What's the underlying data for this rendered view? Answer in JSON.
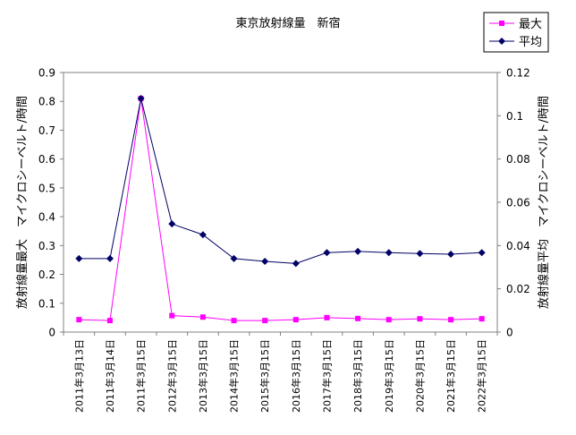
{
  "chart_data": {
    "type": "line",
    "title": "東京放射線量　新宿",
    "ylabel": "放射線量最大　マイクロシーベルト/時間",
    "y2label": "放射線量平均　マイクロシーベルト/時間",
    "categories": [
      "2011年3月13日",
      "2011年3月14日",
      "2011年3月15日",
      "2012年3月15日",
      "2013年3月15日",
      "2014年3月15日",
      "2015年3月15日",
      "2016年3月15日",
      "2017年3月15日",
      "2018年3月15日",
      "2019年3月15日",
      "2020年3月15日",
      "2021年3月15日",
      "2022年3月15日"
    ],
    "yticks": [
      "0",
      "0.1",
      "0.2",
      "0.3",
      "0.4",
      "0.5",
      "0.6",
      "0.7",
      "0.8",
      "0.9"
    ],
    "y2ticks": [
      "0",
      "0.02",
      "0.04",
      "0.06",
      "0.08",
      "0.1",
      "0.12"
    ],
    "ylim": [
      0,
      0.9
    ],
    "y2lim": [
      0,
      0.12
    ],
    "legend_position": "top-right",
    "grid": false,
    "series": [
      {
        "name": "最大",
        "axis": "left",
        "color": "#ff00ff",
        "marker": "square",
        "values": [
          0.043,
          0.04,
          0.81,
          0.057,
          0.052,
          0.04,
          0.04,
          0.043,
          0.05,
          0.047,
          0.043,
          0.046,
          0.043,
          0.046
        ]
      },
      {
        "name": "平均",
        "axis": "right",
        "color": "#000066",
        "marker": "diamond",
        "values": [
          0.034,
          0.034,
          0.108,
          0.05,
          0.045,
          0.034,
          0.0327,
          0.0317,
          0.0367,
          0.0373,
          0.0367,
          0.0363,
          0.036,
          0.0367
        ]
      }
    ]
  }
}
